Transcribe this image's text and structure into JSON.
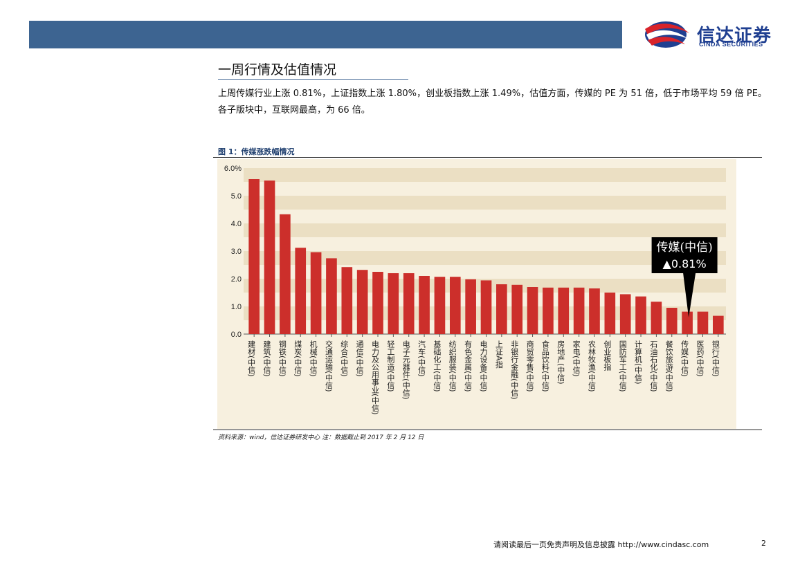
{
  "header": {
    "logo_cn": "信达证券",
    "logo_en": "CINDA SECURITIES"
  },
  "section": {
    "title": "一周行情及估值情况",
    "paragraph": "上周传媒行业上涨 0.81%，上证指数上涨 1.80%，创业板指数上涨 1.49%，估值方面，传媒的 PE 为 51 倍，低于市场平均 59 倍 PE。各子版块中，互联网最高，为 66 倍。"
  },
  "figure": {
    "title": "图 1：传媒涨跌幅情况",
    "source": "资料来源：wind，信达证券研发中心   注：数据截止到 2017 年 2 月 12 日"
  },
  "chart_data": {
    "type": "bar",
    "title": "",
    "xlabel": "",
    "ylabel": "",
    "ylim": [
      0,
      6
    ],
    "y_ticks": [
      "0.0",
      "1.0",
      "2.0",
      "3.0",
      "4.0",
      "5.0",
      "6.0"
    ],
    "y_unit": "%",
    "grid": "alternating horizontal bands",
    "categories": [
      "建材(中信)",
      "建筑(中信)",
      "钢铁(中信)",
      "煤炭(中信)",
      "机械(中信)",
      "交通运输(中信)",
      "综合(中信)",
      "通信(中信)",
      "电力及公用事业(中信)",
      "轻工制造(中信)",
      "电子元器件(中信)",
      "汽车(中信)",
      "基础化工(中信)",
      "纺织服装(中信)",
      "有色金属(中信)",
      "电力设备(中信)",
      "上证A指",
      "非银行金融(中信)",
      "商贸零售(中信)",
      "食品饮料(中信)",
      "房地产(中信)",
      "家电(中信)",
      "农林牧渔(中信)",
      "创业板指",
      "国防军工(中信)",
      "计算机(中信)",
      "石油石化(中信)",
      "餐饮旅游(中信)",
      "传媒(中信)",
      "医药(中信)",
      "银行(中信)"
    ],
    "values": [
      5.6,
      5.55,
      4.33,
      3.12,
      2.96,
      2.74,
      2.42,
      2.32,
      2.25,
      2.2,
      2.2,
      2.1,
      2.07,
      2.07,
      1.98,
      1.94,
      1.8,
      1.78,
      1.7,
      1.68,
      1.68,
      1.68,
      1.65,
      1.5,
      1.44,
      1.36,
      1.17,
      0.95,
      0.81,
      0.81,
      0.66
    ],
    "bar_color": "#cc2f2b",
    "annotation": {
      "line1": "传媒(中信)",
      "line2": "▲0.81%",
      "target_category": "传媒(中信)"
    }
  },
  "footer": {
    "disclaimer": "请阅读最后一页免责声明及信息披露 http://www.cindasc.com",
    "page": "2"
  }
}
